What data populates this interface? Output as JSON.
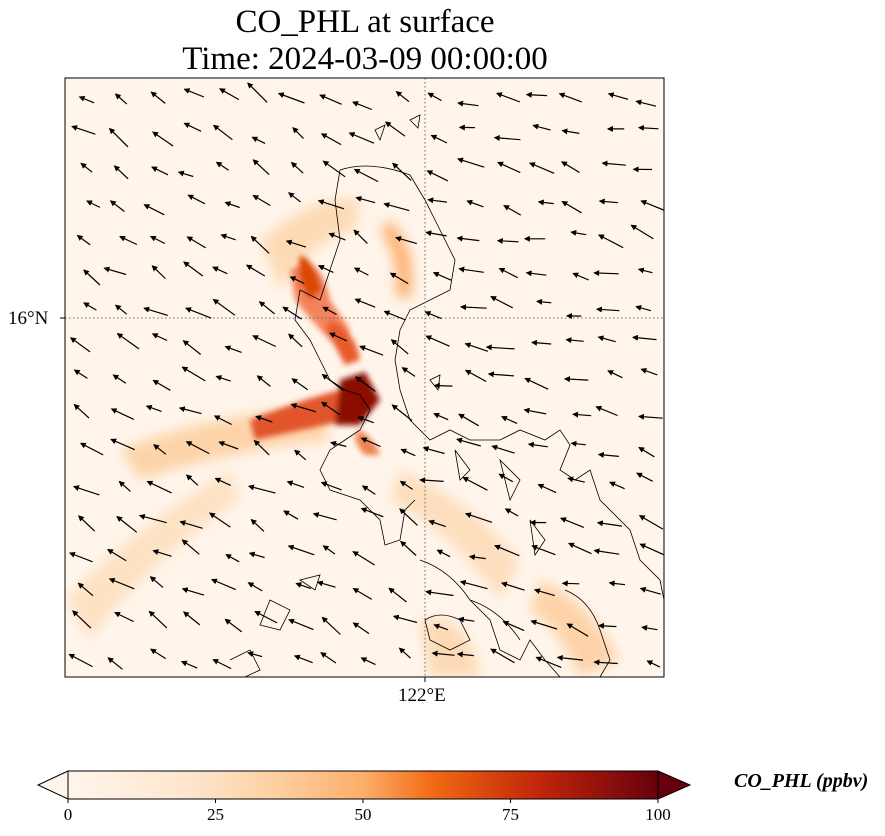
{
  "title": {
    "line1": "CO_PHL at surface",
    "line2": "Time: 2024-03-09 00:00:00"
  },
  "axes": {
    "lat_label": "16°N",
    "lon_label": "122°E"
  },
  "colorbar": {
    "label": "CO_PHL (ppbv)",
    "ticks": [
      "0",
      "25",
      "50",
      "75",
      "100"
    ],
    "range": [
      0,
      100
    ],
    "colors": [
      "#fff5eb",
      "#fdd0a2",
      "#fd8d3c",
      "#d94801",
      "#7f2704"
    ]
  },
  "map": {
    "gridlines": "dotted",
    "overlay": "wind vectors",
    "colormap": "Oranges"
  }
}
